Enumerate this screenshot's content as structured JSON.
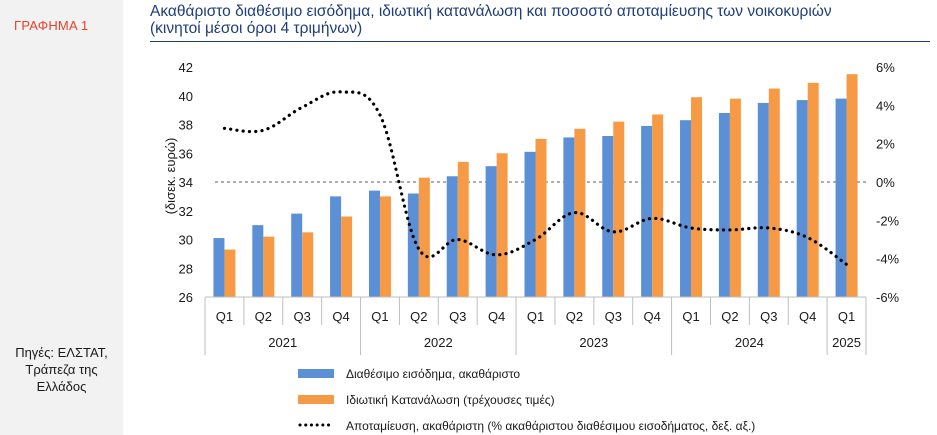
{
  "figure_label": "ΓΡΑΦΗΜΑ 1",
  "title_line1": "Ακαθάριστο διαθέσιμο εισόδημα, ιδιωτική κατανάλωση και ποσοστό αποταμίευσης των νοικοκυριών",
  "title_line2": "(κινητοί μέσοι όροι 4 τριμήνων)",
  "source_line1": "Πηγές: ΕΛΣΤΑΤ,",
  "source_line2": "Τράπεζα της",
  "source_line3": "Ελλάδος",
  "colors": {
    "income": "#5b8fd6",
    "consumption": "#f79a46",
    "saving": "#000000",
    "title": "#1f3d7a",
    "label_red": "#e8412b"
  },
  "chart_data": {
    "type": "bar",
    "title": "Ακαθάριστο διαθέσιμο εισόδημα, ιδιωτική κατανάλωση και ποσοστό αποταμίευσης των νοικοκυριών (κινητοί μέσοι όροι 4 τριμήνων)",
    "categories": [
      "Q1",
      "Q2",
      "Q3",
      "Q4",
      "Q1",
      "Q2",
      "Q3",
      "Q4",
      "Q1",
      "Q2",
      "Q3",
      "Q4",
      "Q1",
      "Q2",
      "Q3",
      "Q4",
      "Q1"
    ],
    "year_groups": [
      {
        "label": "2021",
        "count": 4
      },
      {
        "label": "2022",
        "count": 4
      },
      {
        "label": "2023",
        "count": 4
      },
      {
        "label": "2024",
        "count": 4
      },
      {
        "label": "2025",
        "count": 1
      }
    ],
    "ylabel_left": "(δισεκ. ευρώ)",
    "ylim_left": [
      26,
      42
    ],
    "yticks_left": [
      "26",
      "28",
      "30",
      "32",
      "34",
      "36",
      "38",
      "40",
      "42"
    ],
    "ylim_right": [
      -6,
      6
    ],
    "yticks_right": [
      "-6%",
      "-4%",
      "-2%",
      "0%",
      "2%",
      "4%",
      "6%"
    ],
    "series": [
      {
        "name": "Διαθέσιμο εισόδημα, ακαθάριστο",
        "kind": "bar",
        "axis": "left",
        "values": [
          30.1,
          31.0,
          31.8,
          33.0,
          33.4,
          33.2,
          34.4,
          35.1,
          36.1,
          37.1,
          37.2,
          37.9,
          38.3,
          38.8,
          39.5,
          39.7,
          39.8
        ]
      },
      {
        "name": "Ιδιωτική Κατανάλωση (τρέχουσες τιμές)",
        "kind": "bar",
        "axis": "left",
        "values": [
          29.3,
          30.2,
          30.5,
          31.6,
          33.0,
          34.3,
          35.4,
          36.0,
          37.0,
          37.7,
          38.2,
          38.7,
          39.9,
          39.8,
          40.5,
          40.9,
          41.5
        ]
      },
      {
        "name": "Αποταμίευση, ακαθάριστη (% ακαθάριστου διαθέσιμου εισοδήματος, δεξ. αξ.)",
        "kind": "line",
        "style": "dotted",
        "axis": "right",
        "values": [
          2.8,
          2.7,
          3.9,
          4.7,
          3.5,
          -3.5,
          -3.0,
          -3.8,
          -3.0,
          -1.6,
          -2.6,
          -1.9,
          -2.4,
          -2.5,
          -2.4,
          -2.9,
          -4.3
        ]
      }
    ],
    "reference_line": {
      "axis": "right",
      "value": 0,
      "style": "dashed"
    },
    "legend_position": "bottom",
    "grid": false
  }
}
